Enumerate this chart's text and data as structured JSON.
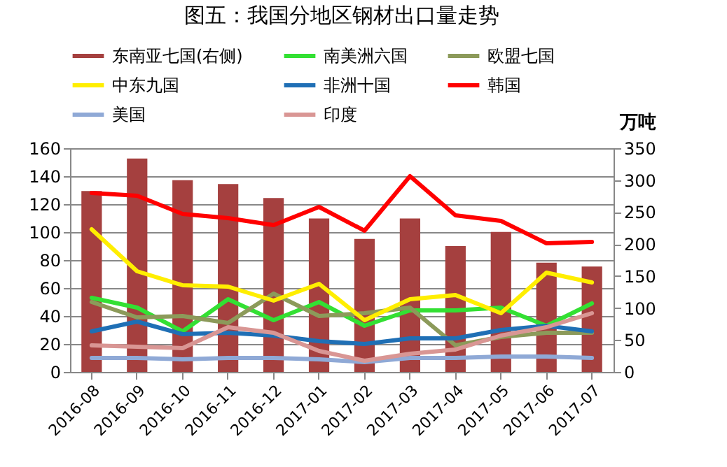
{
  "chart_data": {
    "type": "line",
    "title": "图五：我国分地区钢材出口量走势",
    "y2label": "万吨",
    "categories": [
      "2016-08",
      "2016-09",
      "2016-10",
      "2016-11",
      "2016-12",
      "2017-01",
      "2017-02",
      "2017-03",
      "2017-04",
      "2017-05",
      "2017-06",
      "2017-07"
    ],
    "series": [
      {
        "name": "东南亚七国(右侧)",
        "type": "bar",
        "axis": "y2",
        "color": "#a5403f",
        "values": [
          283,
          334,
          300,
          294,
          272,
          240,
          208,
          240,
          197,
          219,
          171,
          165
        ]
      },
      {
        "name": "南美洲六国",
        "color": "#33e033",
        "values": [
          53,
          46,
          29,
          52,
          37,
          50,
          33,
          44,
          44,
          46,
          33,
          49
        ]
      },
      {
        "name": "欧盟七国",
        "color": "#8c9a5a",
        "values": [
          50,
          39,
          40,
          35,
          56,
          40,
          42,
          46,
          19,
          25,
          28,
          28
        ]
      },
      {
        "name": "中东九国",
        "color": "#ffee00",
        "values": [
          102,
          72,
          62,
          61,
          51,
          63,
          37,
          52,
          55,
          42,
          71,
          64
        ]
      },
      {
        "name": "非洲十国",
        "color": "#1f6fb5",
        "values": [
          29,
          36,
          27,
          28,
          26,
          22,
          20,
          24,
          24,
          30,
          33,
          29
        ]
      },
      {
        "name": "韩国",
        "color": "#ff0000",
        "values": [
          128,
          126,
          113,
          110,
          105,
          118,
          101,
          140,
          112,
          108,
          92,
          93
        ]
      },
      {
        "name": "美国",
        "color": "#8fa9d6",
        "values": [
          10,
          10,
          9,
          10,
          10,
          9,
          7,
          10,
          10,
          11,
          11,
          10
        ]
      },
      {
        "name": "印度",
        "color": "#d99694",
        "values": [
          19,
          18,
          17,
          32,
          28,
          15,
          8,
          13,
          16,
          26,
          32,
          42
        ]
      }
    ],
    "ylim": [
      0,
      160
    ],
    "yticks": [
      0,
      20,
      40,
      60,
      80,
      100,
      120,
      140,
      160
    ],
    "y2lim": [
      0,
      350
    ],
    "y2ticks": [
      0,
      50,
      100,
      150,
      200,
      250,
      300,
      350
    ],
    "grid": "y",
    "legend": "top"
  }
}
